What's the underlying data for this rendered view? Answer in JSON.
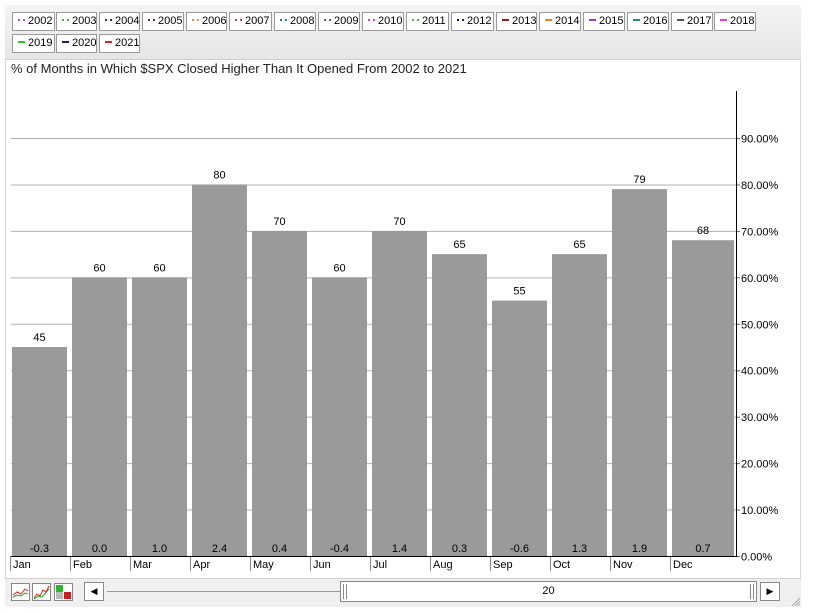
{
  "legend": [
    {
      "label": "2002",
      "color": "#c050c0",
      "style": "dotted"
    },
    {
      "label": "2003",
      "color": "#40b040",
      "style": "dotted"
    },
    {
      "label": "2004",
      "color": "#203080",
      "style": "dotted"
    },
    {
      "label": "2005",
      "color": "#802040",
      "style": "dotted"
    },
    {
      "label": "2006",
      "color": "#e09040",
      "style": "dotted"
    },
    {
      "label": "2007",
      "color": "#a05050",
      "style": "dotted"
    },
    {
      "label": "2008",
      "color": "#208090",
      "style": "dotted"
    },
    {
      "label": "2009",
      "color": "#606060",
      "style": "dotted"
    },
    {
      "label": "2010",
      "color": "#d040d0",
      "style": "dotted"
    },
    {
      "label": "2011",
      "color": "#40c040",
      "style": "dotted"
    },
    {
      "label": "2012",
      "color": "#202060",
      "style": "dotted"
    },
    {
      "label": "2013",
      "color": "#902020",
      "style": "solid"
    },
    {
      "label": "2014",
      "color": "#f08020",
      "style": "solid"
    },
    {
      "label": "2015",
      "color": "#9040c0",
      "style": "solid"
    },
    {
      "label": "2016",
      "color": "#209090",
      "style": "solid"
    },
    {
      "label": "2017",
      "color": "#505050",
      "style": "solid"
    },
    {
      "label": "2018",
      "color": "#e040e0",
      "style": "solid"
    },
    {
      "label": "2019",
      "color": "#30c030",
      "style": "solid"
    },
    {
      "label": "2020",
      "color": "#202060",
      "style": "solid"
    },
    {
      "label": "2021",
      "color": "#e02020",
      "style": "solid"
    }
  ],
  "chart_data": {
    "type": "bar",
    "title": "% of Months in Which $SPX Closed Higher Than It Opened From 2002 to 2021",
    "categories": [
      "Jan",
      "Feb",
      "Mar",
      "Apr",
      "May",
      "Jun",
      "Jul",
      "Aug",
      "Sep",
      "Oct",
      "Nov",
      "Dec"
    ],
    "values": [
      45,
      60,
      60,
      80,
      70,
      60,
      70,
      65,
      55,
      65,
      79,
      68
    ],
    "value_labels": [
      "45",
      "60",
      "60",
      "80",
      "70",
      "60",
      "70",
      "65",
      "55",
      "65",
      "79",
      "68"
    ],
    "secondary_labels": [
      "-0.3",
      "0.0",
      "1.0",
      "2.4",
      "0.4",
      "-0.4",
      "1.4",
      "0.3",
      "-0.6",
      "1.3",
      "1.9",
      "0.7"
    ],
    "y_ticks": [
      0,
      10,
      20,
      30,
      40,
      50,
      60,
      70,
      80,
      90
    ],
    "y_tick_labels": [
      "0.00%",
      "10.00%",
      "20.00%",
      "30.00%",
      "40.00%",
      "50.00%",
      "60.00%",
      "70.00%",
      "80.00%",
      "90.00%"
    ],
    "ylim": [
      0,
      100
    ],
    "y_axis_side": "right",
    "grid": true,
    "bar_color": "#9a9a9a"
  },
  "slider": {
    "value": "20",
    "left_arrow": "◀",
    "right_arrow": "▶"
  }
}
